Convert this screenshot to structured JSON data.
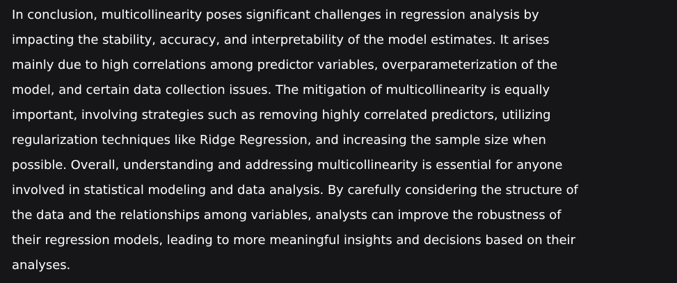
{
  "paragraph": {
    "lines": [
      "In conclusion, multicollinearity poses significant challenges in regression analysis by",
      "impacting the stability, accuracy, and interpretability of the model estimates. It arises",
      "mainly due to high correlations among predictor variables, overparameterization of the",
      "model, and certain data collection issues. The mitigation of multicollinearity is equally",
      "important, involving strategies such as removing highly correlated predictors, utilizing",
      "regularization techniques like Ridge Regression, and increasing the sample size when",
      "possible. Overall, understanding and addressing multicollinearity is essential for anyone",
      "involved in statistical modeling and data analysis. By carefully considering the structure of",
      "the data and the relationships among variables, analysts can improve the robustness of",
      "their regression models, leading to more meaningful insights and decisions based on their",
      "analyses."
    ]
  },
  "colors": {
    "background": "#161618",
    "text": "#ffffff"
  }
}
